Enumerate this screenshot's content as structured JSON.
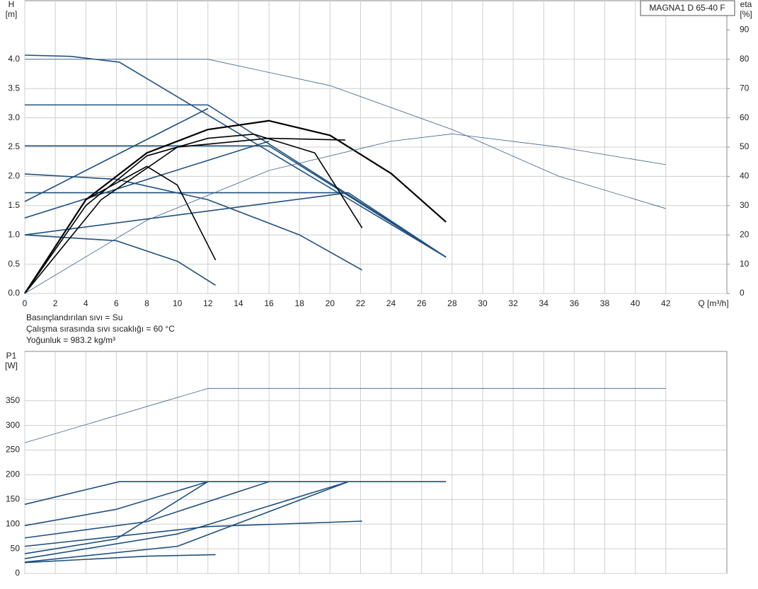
{
  "chart_data": [
    {
      "type": "line",
      "product": "MAGNA1 D 65-40 F",
      "ylabel": [
        "H",
        "[m]"
      ],
      "y2label": [
        "eta",
        "[%]"
      ],
      "xlabel": "Q [m³/h]",
      "annotations": [
        "Basınçlandırılan sıvı = Su",
        "Çalışma sırasında sıvı sıcaklığı = 60 °C",
        "Yoğunluk = 983.2 kg/m³"
      ],
      "xlim": [
        0,
        46
      ],
      "xticks": [
        0,
        2,
        4,
        6,
        8,
        10,
        12,
        14,
        16,
        18,
        20,
        22,
        24,
        26,
        28,
        30,
        32,
        34,
        36,
        38,
        40,
        42
      ],
      "ylim": [
        0,
        5
      ],
      "yticks": [
        {
          "value": 0,
          "label": "0.0"
        },
        0.5,
        {
          "value": 1,
          "label": "1.0"
        },
        1.5,
        {
          "value": 2,
          "label": "2.0"
        },
        2.5,
        {
          "value": 3,
          "label": "3.0"
        },
        3.5,
        {
          "value": 4,
          "label": "4.0"
        }
      ],
      "y2lim": [
        0,
        100
      ],
      "y2ticks": [
        0,
        10,
        20,
        30,
        40,
        50,
        60,
        70,
        80,
        90
      ],
      "grid": true,
      "series": [
        {
          "color": "#1f5080",
          "width": 1.6,
          "x": [
            0,
            3,
            6.2,
            27.6
          ],
          "values": [
            4.07,
            4.05,
            3.95,
            0.62
          ]
        },
        {
          "color": "#1f5080",
          "width": 1.6,
          "x": [
            0,
            12,
            27.6
          ],
          "values": [
            3.22,
            3.22,
            0.62
          ]
        },
        {
          "color": "#1f5080",
          "width": 1.6,
          "x": [
            0,
            16,
            27.6
          ],
          "values": [
            2.52,
            2.52,
            0.62
          ]
        },
        {
          "color": "#1f5080",
          "width": 1.6,
          "x": [
            0,
            21.2,
            27.6
          ],
          "values": [
            1.72,
            1.72,
            0.62
          ]
        },
        {
          "color": "#1f5080",
          "width": 1.6,
          "x": [
            0,
            12
          ],
          "values": [
            1.57,
            3.16
          ]
        },
        {
          "color": "#1f5080",
          "width": 1.6,
          "x": [
            0,
            16
          ],
          "values": [
            1.29,
            2.6
          ]
        },
        {
          "color": "#1f5080",
          "width": 1.6,
          "x": [
            0,
            21.2
          ],
          "values": [
            1.0,
            1.72
          ]
        },
        {
          "color": "#1f5080",
          "width": 1.6,
          "x": [
            0,
            6,
            12,
            18,
            22.1
          ],
          "values": [
            2.04,
            1.95,
            1.6,
            1.0,
            0.4
          ]
        },
        {
          "color": "#1f5080",
          "width": 1.6,
          "x": [
            0,
            6,
            10,
            12.5
          ],
          "values": [
            1.0,
            0.9,
            0.55,
            0.14
          ]
        },
        {
          "color": "#000000",
          "width": 2.2,
          "x": [
            0,
            4,
            8,
            12,
            16,
            20,
            24,
            27.6
          ],
          "values": [
            0,
            1.6,
            2.4,
            2.8,
            2.95,
            2.7,
            2.05,
            1.22
          ]
        },
        {
          "color": "#000000",
          "width": 1.6,
          "x": [
            0,
            4,
            8,
            12,
            15,
            19,
            22.1
          ],
          "values": [
            0,
            1.5,
            2.35,
            2.65,
            2.72,
            2.4,
            1.12
          ]
        },
        {
          "color": "#000000",
          "width": 1.6,
          "x": [
            0,
            5,
            10,
            16,
            21
          ],
          "values": [
            0,
            1.6,
            2.5,
            2.65,
            2.62
          ]
        },
        {
          "color": "#000000",
          "width": 1.6,
          "x": [
            0,
            4,
            8,
            10,
            12.5
          ],
          "values": [
            0,
            1.6,
            2.17,
            1.85,
            0.57
          ]
        },
        {
          "color": "#3a5f8f",
          "width": 0.8,
          "axis": "y2",
          "x": [
            0,
            12,
            20,
            28,
            35,
            42
          ],
          "values": [
            80,
            80,
            71,
            56,
            40,
            29
          ]
        },
        {
          "color": "#3a5f8f",
          "width": 0.8,
          "axis": "y2",
          "x": [
            0,
            8,
            16,
            24,
            28,
            35,
            42
          ],
          "values": [
            0,
            25,
            42,
            52,
            54.5,
            50,
            44
          ]
        }
      ]
    },
    {
      "type": "line",
      "ylabel": [
        "P1",
        "[W]"
      ],
      "xlim": [
        0,
        46
      ],
      "ylim": [
        0,
        450
      ],
      "yticks": [
        0,
        50,
        100,
        150,
        200,
        250,
        300,
        350
      ],
      "grid": true,
      "series": [
        {
          "color": "#3a5f8f",
          "width": 0.8,
          "x": [
            0,
            12,
            42
          ],
          "values": [
            265,
            375,
            375
          ]
        },
        {
          "color": "#1f5080",
          "width": 1.6,
          "x": [
            0,
            6.2,
            27.6
          ],
          "values": [
            140,
            186,
            186
          ]
        },
        {
          "color": "#1f5080",
          "width": 1.6,
          "x": [
            0,
            6,
            12
          ],
          "values": [
            97,
            130,
            186
          ]
        },
        {
          "color": "#1f5080",
          "width": 1.6,
          "x": [
            0,
            8,
            16
          ],
          "values": [
            72,
            105,
            186
          ]
        },
        {
          "color": "#1f5080",
          "width": 1.6,
          "x": [
            0,
            6,
            12
          ],
          "values": [
            40,
            70,
            186
          ]
        },
        {
          "color": "#1f5080",
          "width": 1.6,
          "x": [
            0,
            12,
            22.1
          ],
          "values": [
            55,
            95,
            106
          ]
        },
        {
          "color": "#1f5080",
          "width": 1.6,
          "x": [
            0,
            10,
            21.2
          ],
          "values": [
            30,
            80,
            186
          ]
        },
        {
          "color": "#1f5080",
          "width": 1.6,
          "x": [
            0,
            10,
            21.2
          ],
          "values": [
            23,
            55,
            186
          ]
        },
        {
          "color": "#1f5080",
          "width": 1.6,
          "x": [
            0,
            8,
            12.5
          ],
          "values": [
            22,
            35,
            38
          ]
        }
      ]
    }
  ]
}
